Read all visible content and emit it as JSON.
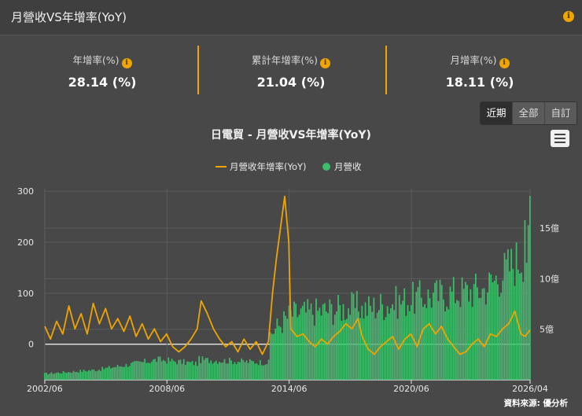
{
  "header": {
    "title": "月營收VS年增率(YoY)",
    "info_icon": "info-icon"
  },
  "stats": [
    {
      "label": "年增率(%)",
      "value": "28.14 (%)"
    },
    {
      "label": "累計年增率(%)",
      "value": "21.04 (%)"
    },
    {
      "label": "月增率(%)",
      "value": "18.11 (%)"
    }
  ],
  "range_buttons": [
    {
      "label": "近期",
      "active": true
    },
    {
      "label": "全部",
      "active": false
    },
    {
      "label": "自訂",
      "active": false
    }
  ],
  "colors": {
    "accent": "#f0a400",
    "revenue": "#3dbd6a",
    "background": "#484848"
  },
  "chart_data": {
    "type": "bar+line",
    "title": "日電貿 - 月營收VS年增率(YoY)",
    "legend": [
      "月營收年增率(YoY)",
      "月營收"
    ],
    "legend_position": "top-center",
    "x_ticks": [
      "2002/06",
      "2008/06",
      "2014/06",
      "2020/06",
      "2026/04"
    ],
    "x_range": [
      2002.42,
      2026.25
    ],
    "y_left": {
      "ticks": [
        "300",
        "200",
        "100",
        "0"
      ],
      "range": [
        -70,
        305
      ]
    },
    "y_right": {
      "ticks": [
        "15億",
        "10億",
        "5億"
      ],
      "unit": "億",
      "range": [
        0,
        18.9
      ]
    },
    "grid": true,
    "yoy_series": {
      "name": "月營收年增率(YoY)",
      "points": [
        [
          2002.42,
          35
        ],
        [
          2002.7,
          10
        ],
        [
          2003.0,
          45
        ],
        [
          2003.3,
          20
        ],
        [
          2003.6,
          75
        ],
        [
          2003.9,
          30
        ],
        [
          2004.2,
          60
        ],
        [
          2004.5,
          20
        ],
        [
          2004.8,
          80
        ],
        [
          2005.1,
          40
        ],
        [
          2005.4,
          70
        ],
        [
          2005.7,
          30
        ],
        [
          2006.0,
          50
        ],
        [
          2006.3,
          25
        ],
        [
          2006.6,
          55
        ],
        [
          2006.9,
          15
        ],
        [
          2007.2,
          40
        ],
        [
          2007.5,
          10
        ],
        [
          2007.8,
          30
        ],
        [
          2008.1,
          5
        ],
        [
          2008.4,
          20
        ],
        [
          2008.7,
          -5
        ],
        [
          2009.0,
          -15
        ],
        [
          2009.3,
          -5
        ],
        [
          2009.6,
          10
        ],
        [
          2009.9,
          30
        ],
        [
          2010.1,
          85
        ],
        [
          2010.4,
          60
        ],
        [
          2010.7,
          30
        ],
        [
          2011.0,
          10
        ],
        [
          2011.3,
          -5
        ],
        [
          2011.6,
          5
        ],
        [
          2011.9,
          -15
        ],
        [
          2012.2,
          10
        ],
        [
          2012.5,
          -10
        ],
        [
          2012.8,
          5
        ],
        [
          2013.1,
          -20
        ],
        [
          2013.4,
          5
        ],
        [
          2013.6,
          100
        ],
        [
          2013.8,
          170
        ],
        [
          2014.0,
          230
        ],
        [
          2014.2,
          290
        ],
        [
          2014.4,
          200
        ],
        [
          2014.5,
          30
        ],
        [
          2014.8,
          15
        ],
        [
          2015.1,
          20
        ],
        [
          2015.4,
          5
        ],
        [
          2015.7,
          -5
        ],
        [
          2016.0,
          10
        ],
        [
          2016.3,
          0
        ],
        [
          2016.6,
          15
        ],
        [
          2016.9,
          25
        ],
        [
          2017.2,
          40
        ],
        [
          2017.5,
          30
        ],
        [
          2017.8,
          50
        ],
        [
          2018.0,
          15
        ],
        [
          2018.3,
          -10
        ],
        [
          2018.6,
          -20
        ],
        [
          2018.9,
          -5
        ],
        [
          2019.2,
          5
        ],
        [
          2019.5,
          15
        ],
        [
          2019.8,
          -10
        ],
        [
          2020.1,
          10
        ],
        [
          2020.4,
          20
        ],
        [
          2020.7,
          -5
        ],
        [
          2021.0,
          30
        ],
        [
          2021.3,
          40
        ],
        [
          2021.6,
          20
        ],
        [
          2021.9,
          35
        ],
        [
          2022.2,
          10
        ],
        [
          2022.5,
          -5
        ],
        [
          2022.8,
          -20
        ],
        [
          2023.1,
          -15
        ],
        [
          2023.4,
          0
        ],
        [
          2023.7,
          10
        ],
        [
          2024.0,
          -5
        ],
        [
          2024.3,
          20
        ],
        [
          2024.6,
          15
        ],
        [
          2024.9,
          30
        ],
        [
          2025.2,
          40
        ],
        [
          2025.5,
          65
        ],
        [
          2025.8,
          20
        ],
        [
          2026.0,
          15
        ],
        [
          2026.25,
          28
        ]
      ]
    },
    "revenue_series": {
      "name": "月營收",
      "segments": [
        {
          "from": 2002.42,
          "to": 2005.0,
          "start": 0.6,
          "end": 1.0
        },
        {
          "from": 2005.0,
          "to": 2008.0,
          "start": 1.0,
          "end": 2.0
        },
        {
          "from": 2008.0,
          "to": 2010.0,
          "start": 2.0,
          "end": 1.6
        },
        {
          "from": 2010.0,
          "to": 2013.5,
          "start": 2.0,
          "end": 1.7
        },
        {
          "from": 2013.5,
          "to": 2014.5,
          "start": 4.6,
          "end": 6.5
        },
        {
          "from": 2014.5,
          "to": 2018.0,
          "start": 6.5,
          "end": 7.3
        },
        {
          "from": 2018.0,
          "to": 2021.0,
          "start": 7.0,
          "end": 8.2
        },
        {
          "from": 2021.0,
          "to": 2024.0,
          "start": 8.2,
          "end": 9.0
        },
        {
          "from": 2024.0,
          "to": 2026.25,
          "start": 9.0,
          "end": 13.0
        }
      ],
      "last_value": 18.2
    }
  },
  "credit": "資料來源: 優分析"
}
